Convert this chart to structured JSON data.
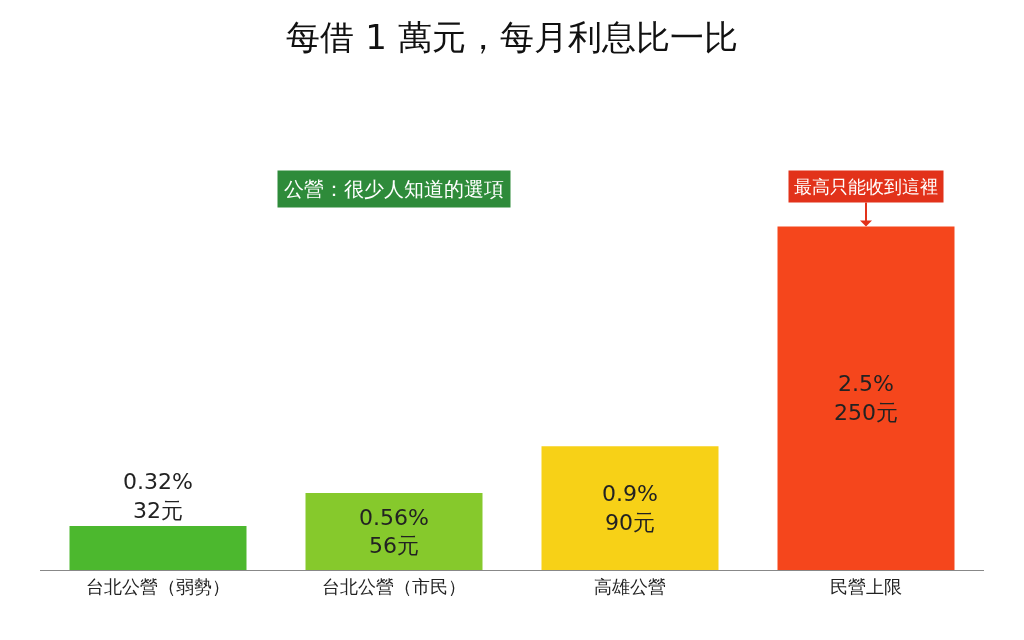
{
  "chart_data": {
    "type": "bar",
    "title": "每借 1 萬元，每月利息比一比",
    "categories": [
      "台北公營（弱勢）",
      "台北公營（市民）",
      "高雄公營",
      "民營上限"
    ],
    "values": [
      0.32,
      0.56,
      0.9,
      2.5
    ],
    "colors": [
      "#4cb82e",
      "#86c92c",
      "#f7d117",
      "#f5461c"
    ],
    "value_labels": [
      "0.32%\n32元",
      "0.56%\n56元",
      "0.9%\n90元",
      "2.5%\n250元"
    ],
    "tick_labels": "x",
    "grid": false,
    "annotations": [
      "公營：很少人知道的選項",
      {
        "text": "最高只能收到這裡",
        "x": "民營上限",
        "y": 2.5
      }
    ]
  }
}
